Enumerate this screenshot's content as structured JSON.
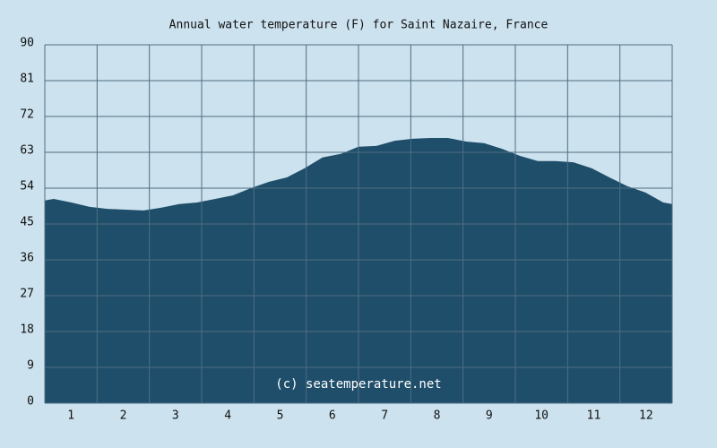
{
  "chart_data": {
    "type": "area",
    "title": "Annual water temperature (F) for Saint Nazaire, France",
    "annotation": "(c) seatemperature.net",
    "color": "#1f4e6a",
    "x": [
      0.5,
      0.67,
      1.01,
      1.36,
      1.7,
      2.04,
      2.39,
      2.73,
      3.07,
      3.41,
      3.76,
      4.1,
      4.44,
      4.79,
      5.13,
      5.47,
      5.81,
      6.16,
      6.5,
      6.84,
      7.19,
      7.53,
      7.87,
      8.21,
      8.56,
      8.9,
      9.24,
      9.59,
      9.93,
      10.27,
      10.61,
      10.96,
      11.3,
      11.64,
      11.99,
      12.33,
      12.5
    ],
    "values": [
      50.9,
      51.3,
      50.4,
      49.3,
      48.8,
      48.6,
      48.4,
      49.1,
      50.0,
      50.4,
      51.3,
      52.2,
      54.0,
      55.6,
      56.7,
      59.0,
      61.7,
      62.6,
      64.4,
      64.6,
      65.9,
      66.4,
      66.6,
      66.6,
      65.7,
      65.3,
      63.9,
      62.1,
      60.8,
      60.8,
      60.5,
      59.0,
      56.7,
      54.5,
      52.9,
      50.4,
      50.0
    ],
    "xlim": [
      0.5,
      12.5
    ],
    "xticks": [
      1,
      2,
      3,
      4,
      5,
      6,
      7,
      8,
      9,
      10,
      11,
      12
    ],
    "ylim": [
      0,
      90
    ],
    "yticks": [
      0,
      9,
      18,
      27,
      36,
      45,
      54,
      63,
      72,
      81,
      90
    ],
    "grid": true
  }
}
